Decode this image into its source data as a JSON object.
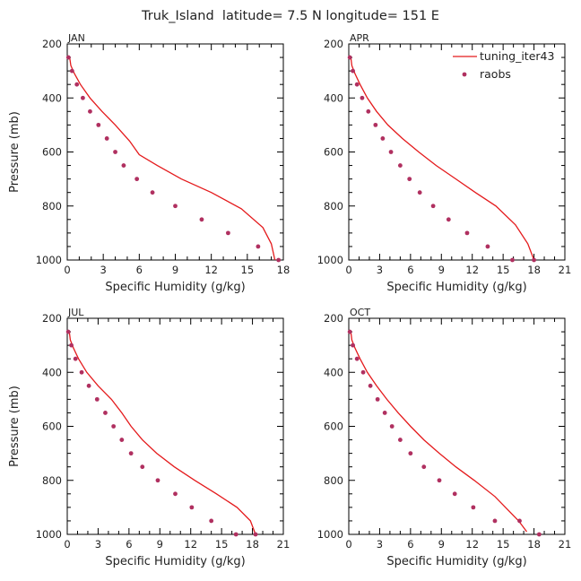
{
  "figure": {
    "title": "Truk_Island  latitude= 7.5 N longitude= 151 E",
    "legend": {
      "model_label": "tuning_iter43",
      "obs_label": "raobs",
      "position": "top-right of APR panel"
    },
    "colors": {
      "model": "#e41a1c",
      "obs": "#b03060",
      "axis": "#000000"
    }
  },
  "chart_data": [
    {
      "type": "line",
      "panel": "JAN",
      "title": "JAN",
      "xlabel": "Specific Humidity (g/kg)",
      "ylabel": "Pressure (mb)",
      "xlim": [
        0,
        18
      ],
      "ylim": [
        1000,
        200
      ],
      "xticks": [
        0,
        3,
        6,
        9,
        12,
        15,
        18
      ],
      "yticks": [
        200,
        400,
        600,
        800,
        1000
      ],
      "series": [
        {
          "name": "tuning_iter43",
          "kind": "line",
          "x": [
            0.2,
            0.3,
            0.6,
            1.1,
            1.9,
            2.9,
            4.0,
            5.2,
            6.0,
            7.5,
            9.5,
            12.0,
            14.5,
            16.3,
            17.0,
            17.3
          ],
          "y": [
            250,
            280,
            310,
            350,
            400,
            450,
            500,
            560,
            610,
            650,
            700,
            750,
            810,
            880,
            940,
            1000
          ]
        },
        {
          "name": "raobs",
          "kind": "points",
          "x": [
            0.1,
            0.4,
            0.8,
            1.3,
            1.9,
            2.6,
            3.3,
            4.0,
            4.7,
            5.8,
            7.1,
            9.0,
            11.2,
            13.4,
            15.9,
            17.6
          ],
          "y": [
            250,
            300,
            350,
            400,
            450,
            500,
            550,
            600,
            650,
            700,
            750,
            800,
            850,
            900,
            950,
            1000
          ]
        }
      ]
    },
    {
      "type": "line",
      "panel": "APR",
      "title": "APR",
      "xlabel": "Specific Humidity (g/kg)",
      "ylabel": "",
      "xlim": [
        0,
        21
      ],
      "ylim": [
        1000,
        200
      ],
      "xticks": [
        0,
        3,
        6,
        9,
        12,
        15,
        18,
        21
      ],
      "yticks": [
        200,
        400,
        600,
        800,
        1000
      ],
      "series": [
        {
          "name": "tuning_iter43",
          "kind": "line",
          "x": [
            0.2,
            0.3,
            0.6,
            1.1,
            1.8,
            2.7,
            3.8,
            5.2,
            6.8,
            8.5,
            10.4,
            12.3,
            14.3,
            16.2,
            17.4,
            18.0
          ],
          "y": [
            250,
            280,
            310,
            350,
            400,
            450,
            500,
            550,
            600,
            650,
            700,
            750,
            800,
            870,
            940,
            1000
          ]
        },
        {
          "name": "raobs",
          "kind": "points",
          "x": [
            0.1,
            0.4,
            0.8,
            1.3,
            1.9,
            2.6,
            3.3,
            4.1,
            5.0,
            5.9,
            6.9,
            8.2,
            9.7,
            11.5,
            13.5,
            15.9,
            18.0
          ],
          "y": [
            250,
            300,
            350,
            400,
            450,
            500,
            550,
            600,
            650,
            700,
            750,
            800,
            850,
            900,
            950,
            1000,
            1000
          ]
        }
      ]
    },
    {
      "type": "line",
      "panel": "JUL",
      "title": "JUL",
      "xlabel": "Specific Humidity (g/kg)",
      "ylabel": "Pressure (mb)",
      "xlim": [
        0,
        21
      ],
      "ylim": [
        1000,
        200
      ],
      "xticks": [
        0,
        3,
        6,
        9,
        12,
        15,
        18,
        21
      ],
      "yticks": [
        200,
        400,
        600,
        800,
        1000
      ],
      "series": [
        {
          "name": "tuning_iter43",
          "kind": "line",
          "x": [
            0.2,
            0.3,
            0.6,
            1.1,
            1.9,
            3.0,
            4.3,
            5.3,
            6.2,
            7.3,
            8.7,
            10.4,
            12.4,
            14.5,
            16.5,
            17.8,
            18.3
          ],
          "y": [
            250,
            280,
            310,
            350,
            400,
            450,
            500,
            550,
            600,
            650,
            700,
            750,
            800,
            850,
            900,
            950,
            1000
          ]
        },
        {
          "name": "raobs",
          "kind": "points",
          "x": [
            0.1,
            0.4,
            0.8,
            1.4,
            2.1,
            2.9,
            3.7,
            4.5,
            5.3,
            6.2,
            7.3,
            8.8,
            10.5,
            12.1,
            14.0,
            16.4,
            18.3
          ],
          "y": [
            250,
            300,
            350,
            400,
            450,
            500,
            550,
            600,
            650,
            700,
            750,
            800,
            850,
            900,
            950,
            1000,
            1000
          ]
        }
      ]
    },
    {
      "type": "line",
      "panel": "OCT",
      "title": "OCT",
      "xlabel": "Specific Humidity (g/kg)",
      "ylabel": "",
      "xlim": [
        0,
        21
      ],
      "ylim": [
        1000,
        200
      ],
      "xticks": [
        0,
        3,
        6,
        9,
        12,
        15,
        18,
        21
      ],
      "yticks": [
        200,
        400,
        600,
        800,
        1000
      ],
      "series": [
        {
          "name": "tuning_iter43",
          "kind": "line",
          "x": [
            0.2,
            0.3,
            0.6,
            1.1,
            1.8,
            2.7,
            3.7,
            4.8,
            6.0,
            7.3,
            8.8,
            10.4,
            12.2,
            14.2,
            16.5,
            17.3
          ],
          "y": [
            250,
            280,
            310,
            350,
            400,
            450,
            500,
            550,
            600,
            650,
            700,
            750,
            800,
            860,
            950,
            990
          ]
        },
        {
          "name": "raobs",
          "kind": "points",
          "x": [
            0.1,
            0.4,
            0.8,
            1.4,
            2.1,
            2.8,
            3.5,
            4.2,
            5.0,
            6.0,
            7.3,
            8.8,
            10.3,
            12.1,
            14.2,
            16.6,
            18.5
          ],
          "y": [
            250,
            300,
            350,
            400,
            450,
            500,
            550,
            600,
            650,
            700,
            750,
            800,
            850,
            900,
            950,
            950,
            1000
          ]
        }
      ]
    }
  ]
}
